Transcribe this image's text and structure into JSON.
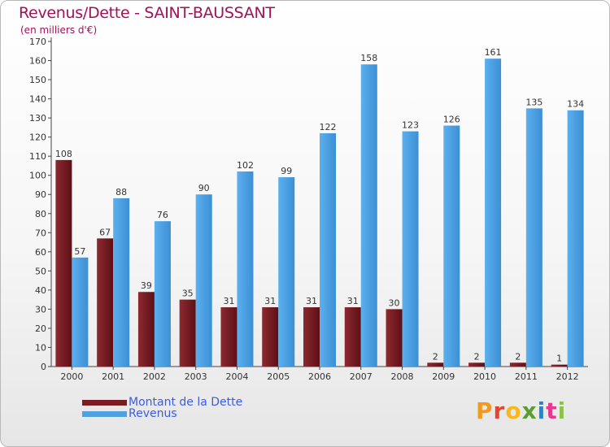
{
  "page": {
    "title": "Revenus/Dette - SAINT-BAUSSANT",
    "subtitle": "(en milliers d'€)",
    "logo": "Proxiti"
  },
  "colors": {
    "dette": "#7a1c22",
    "revenus": "#4ea2e0",
    "title": "#a0115a",
    "legend_text": "#3d5be0"
  },
  "legend": [
    {
      "label": "Montant de la Dette",
      "color": "#7a1c22"
    },
    {
      "label": "Revenus",
      "color": "#4ea2e0"
    }
  ],
  "chart_data": {
    "type": "bar",
    "title": "Revenus/Dette - SAINT-BAUSSANT",
    "ylabel": "(en milliers d'€)",
    "xlabel": "",
    "ylim": [
      0,
      170
    ],
    "ytick_step": 10,
    "grid": false,
    "legend_position": "bottom-left",
    "categories": [
      "2000",
      "2001",
      "2002",
      "2003",
      "2004",
      "2005",
      "2006",
      "2007",
      "2008",
      "2009",
      "2010",
      "2011",
      "2012"
    ],
    "series": [
      {
        "name": "Montant de la Dette",
        "color": "#7a1c22",
        "values": [
          108,
          67,
          39,
          35,
          31,
          31,
          31,
          31,
          30,
          2,
          2,
          2,
          1
        ]
      },
      {
        "name": "Revenus",
        "color": "#4ea2e0",
        "values": [
          57,
          88,
          76,
          90,
          102,
          99,
          122,
          158,
          123,
          126,
          161,
          135,
          134
        ]
      }
    ]
  }
}
